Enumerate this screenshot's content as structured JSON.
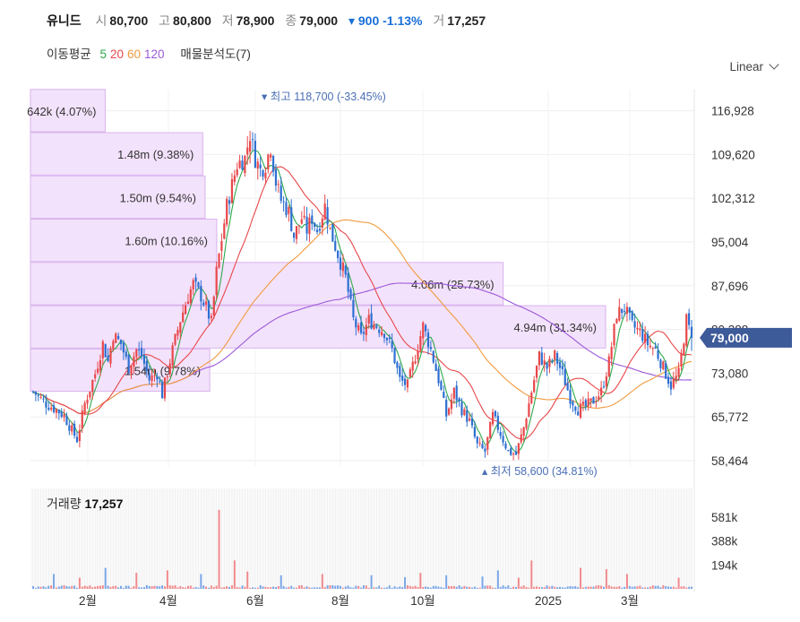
{
  "header": {
    "stock_name": "유니드",
    "open_label": "시",
    "open": "80,700",
    "high_label": "고",
    "high": "80,800",
    "low_label": "저",
    "low": "78,900",
    "close_label": "종",
    "close": "79,000",
    "change": "▾ 900 -1.13%",
    "volume_label": "거",
    "volume": "17,257"
  },
  "ma_legend": {
    "label": "이동평균",
    "periods": [
      "5",
      "20",
      "60",
      "120"
    ],
    "profile_label": "매물분석도(7)"
  },
  "scale_selector": {
    "label": "Linear"
  },
  "colors": {
    "up": "#e8474a",
    "down": "#2d6fd1",
    "ma5": "#2ea84a",
    "ma20": "#e8474a",
    "ma60": "#f19a3e",
    "ma120": "#9b59d8",
    "profile_fill": "#f3e2fb",
    "profile_stroke": "#d9b3ee",
    "price_tag": "#3d5a99"
  },
  "chart_data": {
    "type": "candlestick",
    "y_ticks": [
      "116,928",
      "109,620",
      "102,312",
      "95,004",
      "87,696",
      "80,388",
      "73,080",
      "65,772",
      "58,464"
    ],
    "y_tick_values": [
      116928,
      109620,
      102312,
      95004,
      87696,
      80388,
      73080,
      65772,
      58464
    ],
    "x_ticks": [
      "2월",
      "4월",
      "6월",
      "8월",
      "10월",
      "2025",
      "3월"
    ],
    "current_price_tag": "79,000",
    "current_price": 79000,
    "high_annotation": "▾ 최고 118,700 (-33.45%)",
    "low_annotation": "▴ 최저 58,600 (34.81%)",
    "price_anchors": [
      [
        0,
        70000
      ],
      [
        5,
        68000
      ],
      [
        9,
        67000
      ],
      [
        12,
        66000
      ],
      [
        15,
        63500
      ],
      [
        17,
        62000
      ],
      [
        20,
        68000
      ],
      [
        24,
        73000
      ],
      [
        27,
        78000
      ],
      [
        29,
        75000
      ],
      [
        31,
        79500
      ],
      [
        34,
        78000
      ],
      [
        37,
        74000
      ],
      [
        40,
        77000
      ],
      [
        42,
        76000
      ],
      [
        45,
        72000
      ],
      [
        48,
        73000
      ],
      [
        50,
        69500
      ],
      [
        54,
        77000
      ],
      [
        57,
        82000
      ],
      [
        60,
        86000
      ],
      [
        62,
        88000
      ],
      [
        65,
        86000
      ],
      [
        67,
        84000
      ],
      [
        69,
        81500
      ],
      [
        71,
        90000
      ],
      [
        75,
        101000
      ],
      [
        79,
        108000
      ],
      [
        82,
        109000
      ],
      [
        84,
        113000
      ],
      [
        86,
        109000
      ],
      [
        88,
        107000
      ],
      [
        90,
        108000
      ],
      [
        92,
        111000
      ],
      [
        94,
        105000
      ],
      [
        96,
        102000
      ],
      [
        99,
        100000
      ],
      [
        101,
        96000
      ],
      [
        104,
        99000
      ],
      [
        106,
        97000
      ],
      [
        108,
        99000
      ],
      [
        110,
        97000
      ],
      [
        113,
        101000
      ],
      [
        115,
        97000
      ],
      [
        118,
        93000
      ],
      [
        121,
        89000
      ],
      [
        124,
        82000
      ],
      [
        127,
        79000
      ],
      [
        130,
        82000
      ],
      [
        133,
        81000
      ],
      [
        136,
        80000
      ],
      [
        139,
        77000
      ],
      [
        142,
        72000
      ],
      [
        145,
        71000
      ],
      [
        148,
        76000
      ],
      [
        151,
        81000
      ],
      [
        154,
        77000
      ],
      [
        157,
        72000
      ],
      [
        160,
        66000
      ],
      [
        163,
        70000
      ],
      [
        166,
        67000
      ],
      [
        169,
        65000
      ],
      [
        172,
        61000
      ],
      [
        175,
        60000
      ],
      [
        178,
        66000
      ],
      [
        181,
        63000
      ],
      [
        184,
        60000
      ],
      [
        187,
        59500
      ],
      [
        190,
        64000
      ],
      [
        193,
        70000
      ],
      [
        196,
        76000
      ],
      [
        199,
        74000
      ],
      [
        202,
        76000
      ],
      [
        205,
        73000
      ],
      [
        208,
        69000
      ],
      [
        211,
        67000
      ],
      [
        214,
        67500
      ],
      [
        217,
        68500
      ],
      [
        220,
        70000
      ],
      [
        223,
        75000
      ],
      [
        226,
        83000
      ],
      [
        229,
        84000
      ],
      [
        232,
        81000
      ],
      [
        235,
        80000
      ],
      [
        238,
        78000
      ],
      [
        241,
        77000
      ],
      [
        244,
        74000
      ],
      [
        247,
        71000
      ],
      [
        250,
        73000
      ],
      [
        253,
        82000
      ],
      [
        255,
        79000
      ]
    ],
    "volume_ticks": [
      "581k",
      "388k",
      "194k"
    ],
    "volume_tick_values": [
      581000,
      388000,
      194000
    ],
    "volume_title_label": "거래량",
    "volume_title_value": "17,257",
    "volume_spikes": [
      [
        8,
        120000
      ],
      [
        18,
        90000
      ],
      [
        28,
        170000
      ],
      [
        40,
        130000
      ],
      [
        52,
        150000
      ],
      [
        65,
        120000
      ],
      [
        72,
        640000
      ],
      [
        78,
        230000
      ],
      [
        83,
        140000
      ],
      [
        96,
        110000
      ],
      [
        112,
        120000
      ],
      [
        131,
        110000
      ],
      [
        144,
        95000
      ],
      [
        150,
        130000
      ],
      [
        160,
        110000
      ],
      [
        174,
        100000
      ],
      [
        180,
        150000
      ],
      [
        188,
        90000
      ],
      [
        193,
        230000
      ],
      [
        212,
        170000
      ],
      [
        222,
        160000
      ],
      [
        230,
        120000
      ],
      [
        250,
        90000
      ]
    ],
    "volume_profile": [
      {
        "label": "642k (4.07%)",
        "price_low": 113272,
        "price_high": 120500,
        "volume": 642000,
        "pct": 4.07
      },
      {
        "label": "1.48m (9.38%)",
        "price_low": 106044,
        "price_high": 113272,
        "volume": 1480000,
        "pct": 9.38
      },
      {
        "label": "1.50m (9.54%)",
        "price_low": 98816,
        "price_high": 106044,
        "volume": 1500000,
        "pct": 9.54
      },
      {
        "label": "1.60m (10.16%)",
        "price_low": 91588,
        "price_high": 98816,
        "volume": 1600000,
        "pct": 10.16
      },
      {
        "label": "4.06m (25.73%)",
        "price_low": 84360,
        "price_high": 91588,
        "volume": 4060000,
        "pct": 25.73
      },
      {
        "label": "4.94m (31.34%)",
        "price_low": 77132,
        "price_high": 84360,
        "volume": 4940000,
        "pct": 31.34
      },
      {
        "label": "1.54m (9.78%)",
        "price_low": 69904,
        "price_high": 77132,
        "volume": 1540000,
        "pct": 9.78
      }
    ]
  }
}
